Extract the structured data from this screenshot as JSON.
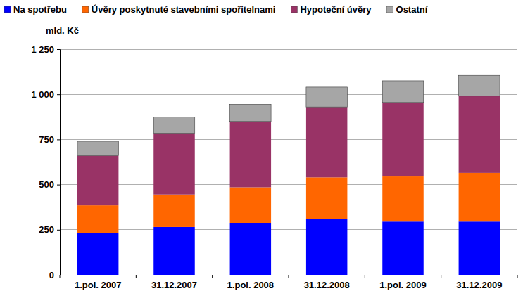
{
  "chart_data": {
    "type": "bar",
    "stacked": true,
    "grid": true,
    "legend": "top",
    "ylabel": "mld. Kč",
    "categories": [
      "1.pol. 2007",
      "31.12.2007",
      "1.pol. 2008",
      "31.12.2008",
      "1.pol. 2009",
      "31.12.2009"
    ],
    "ylim": [
      0,
      1250
    ],
    "yticks": [
      0,
      250,
      500,
      750,
      {
        "value": 1000,
        "label": "1 000"
      },
      {
        "value": 1250,
        "label": "1 250"
      }
    ],
    "series": [
      {
        "name": "Na spotřebu",
        "color": "#0000ff",
        "values": [
          230,
          265,
          285,
          310,
          295,
          295
        ]
      },
      {
        "name": "Úvěry poskytnuté stavebními spořitelnami",
        "color": "#ff6600",
        "values": [
          155,
          180,
          200,
          230,
          250,
          270
        ]
      },
      {
        "name": "Hypoteční úvěry",
        "color": "#993366",
        "values": [
          275,
          340,
          365,
          390,
          410,
          425
        ]
      },
      {
        "name": "Ostatní",
        "color": "#a6a6a6",
        "values": [
          80,
          90,
          95,
          110,
          120,
          115
        ]
      }
    ]
  }
}
